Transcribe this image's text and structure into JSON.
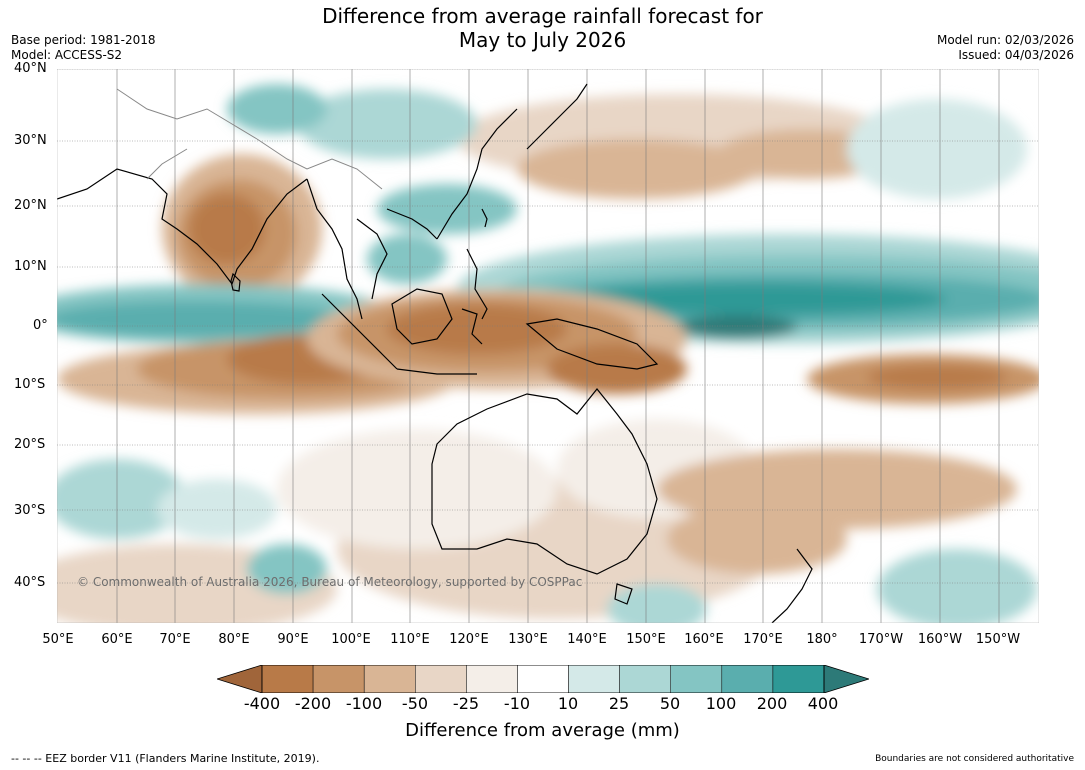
{
  "title": {
    "line1": "Difference from average rainfall forecast for",
    "line2": "May to July 2026"
  },
  "meta_left": {
    "base_period": "Base period: 1981-2018",
    "model": "Model: ACCESS-S2"
  },
  "meta_right": {
    "model_run": "Model run: 02/03/2026",
    "issued": "Issued: 04/03/2026"
  },
  "map": {
    "lat_labels": [
      "40°N",
      "30°N",
      "20°N",
      "10°N",
      "0°",
      "10°S",
      "20°S",
      "30°S",
      "40°S"
    ],
    "lon_labels": [
      "50°E",
      "60°E",
      "70°E",
      "80°E",
      "90°E",
      "100°E",
      "110°E",
      "120°E",
      "130°E",
      "140°E",
      "150°E",
      "160°E",
      "170°E",
      "180°",
      "170°W",
      "160°W",
      "150°W"
    ],
    "copyright": "© Commonwealth of Australia 2026, Bureau of Meteorology, supported by COSPPac"
  },
  "colorbar": {
    "colors": [
      "#a0653a",
      "#b87a48",
      "#c79468",
      "#d9b595",
      "#e8d6c6",
      "#f4eee8",
      "#ffffff",
      "#d4e9e8",
      "#acd7d5",
      "#84c5c3",
      "#5aaeae",
      "#2e9996",
      "#2d7a78"
    ],
    "tick_labels": [
      "-400",
      "-200",
      "-100",
      "-50",
      "-25",
      "-10",
      "10",
      "25",
      "50",
      "100",
      "200",
      "400"
    ],
    "title": "Difference from average (mm)"
  },
  "footer": {
    "eez_legend": "--  --  -- EEZ border V11 (Flanders Marine Institute, 2019).",
    "boundaries_note": "Boundaries are not considered authoritative"
  }
}
